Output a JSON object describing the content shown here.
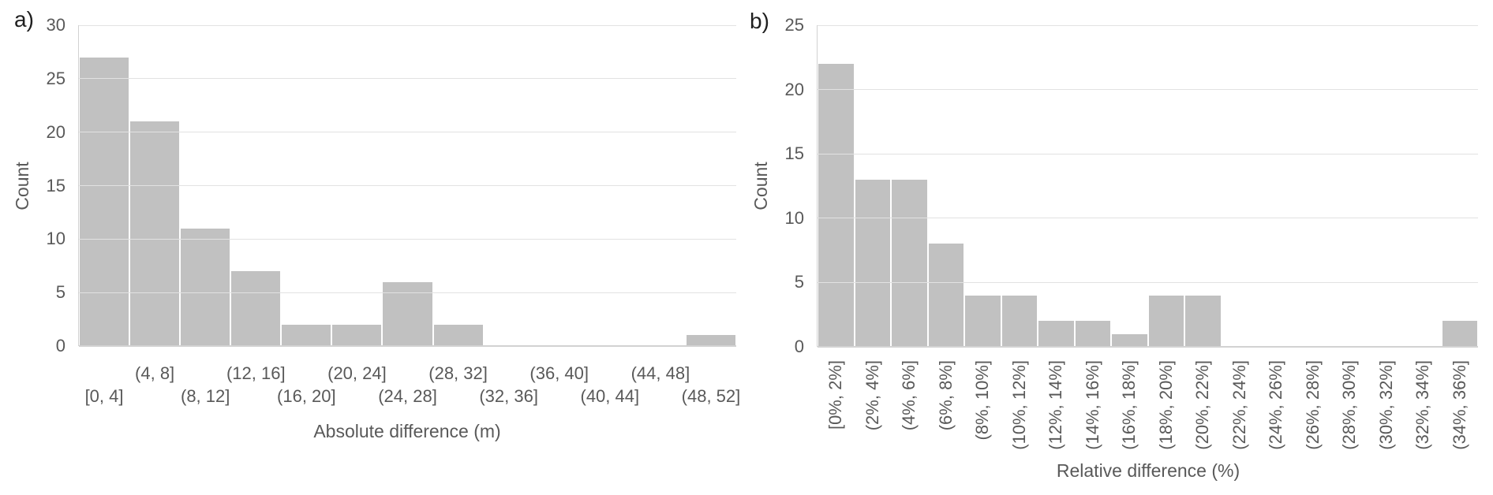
{
  "panels": [
    {
      "panel_label": "a)",
      "y_axis_title": "Count",
      "x_axis_title": "Absolute difference (m)"
    },
    {
      "panel_label": "b)",
      "y_axis_title": "Count",
      "x_axis_title": "Relative difference (%)"
    }
  ],
  "chart_data": [
    {
      "type": "bar",
      "title": "a)",
      "categories": [
        "[0, 4]",
        "(4, 8]",
        "(8, 12]",
        "(12, 16]",
        "(16, 20]",
        "(20, 24]",
        "(24, 28]",
        "(28, 32]",
        "(32, 36]",
        "(36, 40]",
        "(40, 44]",
        "(44, 48]",
        "(48, 52]"
      ],
      "values": [
        27,
        21,
        11,
        7,
        2,
        2,
        6,
        2,
        0,
        0,
        0,
        0,
        1
      ],
      "xlabel": "Absolute difference (m)",
      "ylabel": "Count",
      "ylim": [
        0,
        30
      ],
      "yticks": [
        0,
        5,
        10,
        15,
        20,
        25,
        30
      ],
      "grid": true,
      "legend": false,
      "bar_color": "#c1c1c1",
      "gridline_color": "#e2e2e2",
      "text_color": "#595959"
    },
    {
      "type": "bar",
      "title": "b)",
      "categories": [
        "[0%, 2%]",
        "(2%, 4%]",
        "(4%, 6%]",
        "(6%, 8%]",
        "(8%, 10%]",
        "(10%, 12%]",
        "(12%, 14%]",
        "(14%, 16%]",
        "(16%, 18%]",
        "(18%, 20%]",
        "(20%, 22%]",
        "(22%, 24%]",
        "(24%, 26%]",
        "(26%, 28%]",
        "(28%, 30%]",
        "(30%, 32%]",
        "(32%, 34%]",
        "(34%, 36%]"
      ],
      "values": [
        22,
        13,
        13,
        8,
        4,
        4,
        2,
        2,
        1,
        4,
        4,
        0,
        0,
        0,
        0,
        0,
        0,
        2
      ],
      "xlabel": "Relative difference (%)",
      "ylabel": "Count",
      "ylim": [
        0,
        25
      ],
      "yticks": [
        0,
        5,
        10,
        15,
        20,
        25
      ],
      "grid": true,
      "legend": false,
      "bar_color": "#c1c1c1",
      "gridline_color": "#e2e2e2",
      "text_color": "#595959"
    }
  ]
}
